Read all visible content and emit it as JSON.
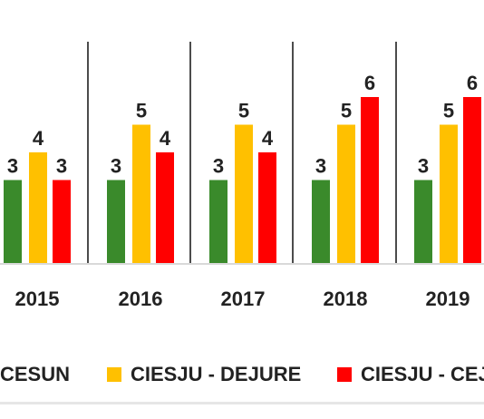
{
  "chart_data": {
    "type": "bar",
    "categories": [
      "2015",
      "2016",
      "2017",
      "2018",
      "2019"
    ],
    "series": [
      {
        "name": "CESUN",
        "color": "#3a8a2b",
        "values": [
          3,
          3,
          3,
          3,
          3
        ]
      },
      {
        "name": "CIESJU - DEJURE",
        "color": "#ffc000",
        "values": [
          4,
          5,
          5,
          5,
          5
        ]
      },
      {
        "name": "CIESJU - CEJ",
        "color": "#ff0000",
        "values": [
          3,
          4,
          4,
          6,
          6
        ]
      }
    ],
    "ylim": [
      0,
      7
    ],
    "grid": false,
    "legend_position": "bottom"
  }
}
